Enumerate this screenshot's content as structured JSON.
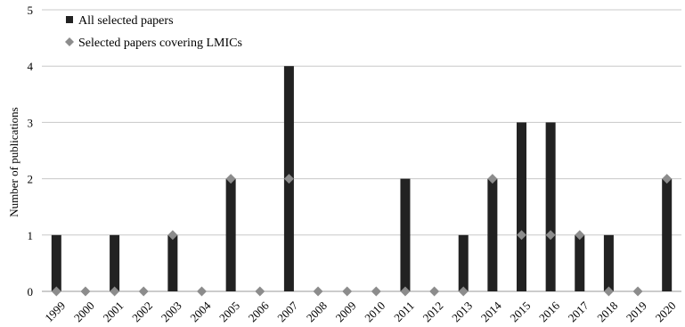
{
  "chart_data": {
    "type": "bar",
    "categories": [
      "1999",
      "2000",
      "2001",
      "2002",
      "2003",
      "2004",
      "2005",
      "2006",
      "2007",
      "2008",
      "2009",
      "2010",
      "2011",
      "2012",
      "2013",
      "2014",
      "2015",
      "2016",
      "2017",
      "2018",
      "2019",
      "2020"
    ],
    "series": [
      {
        "name": "All selected papers",
        "kind": "bar",
        "color": "#222222",
        "values": [
          1,
          0,
          1,
          0,
          1,
          0,
          2,
          0,
          4,
          0,
          0,
          0,
          2,
          0,
          1,
          2,
          3,
          3,
          1,
          1,
          0,
          2
        ]
      },
      {
        "name": "Selected papers covering LMICs",
        "kind": "marker",
        "marker": "diamond",
        "color": "#8c8c8c",
        "values": [
          0,
          0,
          0,
          0,
          1,
          0,
          2,
          0,
          2,
          0,
          0,
          0,
          0,
          0,
          0,
          2,
          1,
          1,
          1,
          0,
          0,
          2
        ]
      }
    ],
    "xlabel": "",
    "ylabel": "Number of publications",
    "ylim": [
      0,
      5
    ],
    "yticks": [
      0,
      1,
      2,
      3,
      4,
      5
    ],
    "grid": true,
    "legend_position": "top-left",
    "xtick_rotation": -45
  }
}
